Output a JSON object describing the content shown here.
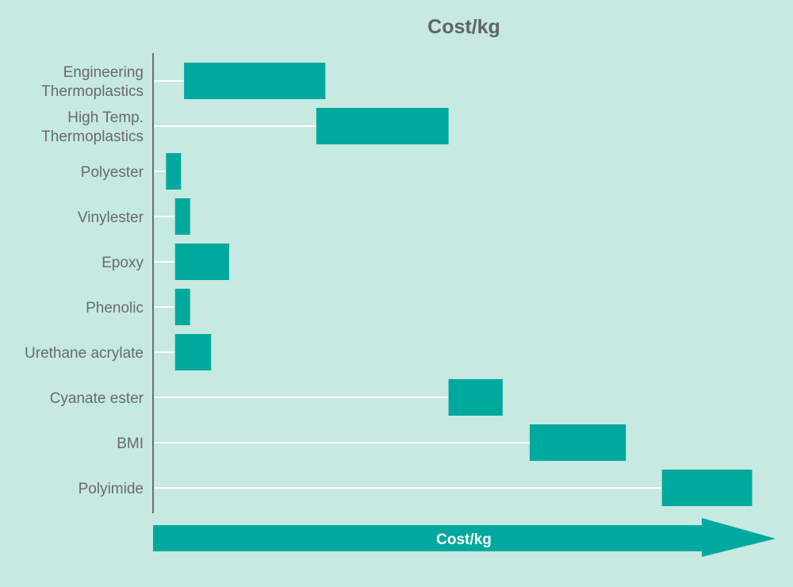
{
  "chart_data": {
    "type": "bar",
    "subtype": "floating-range",
    "title": "Cost/kg",
    "xlabel": "Cost/kg",
    "ylabel": "",
    "xlim": [
      0,
      100
    ],
    "grid": false,
    "legend": "none",
    "colors": {
      "background": "#c6e9e2",
      "bar": "#00a99d",
      "guide_line": "#ffffff",
      "axis": "#6e6e6e",
      "label_text": "#6a6a6a",
      "title_text": "#636363",
      "arrow_text": "#ffffff"
    },
    "categories": [
      "Engineering\nThermoplastics",
      "High Temp.\nThermoplastics",
      "Polyester",
      "Vinylester",
      "Epoxy",
      "Phenolic",
      "Urethane acrylate",
      "Cyanate ester",
      "BMI",
      "Polyimide"
    ],
    "ranges": [
      [
        4.5,
        28
      ],
      [
        26.5,
        48.5
      ],
      [
        1.5,
        4
      ],
      [
        3,
        5.5
      ],
      [
        3,
        12
      ],
      [
        3,
        5.5
      ],
      [
        3,
        9
      ],
      [
        48.5,
        57.5
      ],
      [
        62,
        78
      ],
      [
        84,
        99
      ]
    ]
  }
}
